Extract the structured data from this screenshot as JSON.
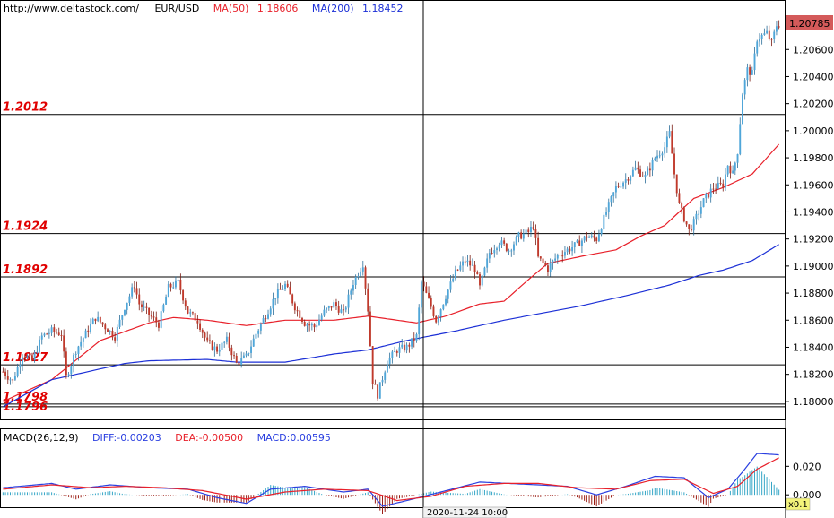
{
  "header": {
    "url": "http://www.deltastock.com/",
    "symbol": "EUR/USD",
    "ma50_label": "MA(50)",
    "ma50_value": "1.18606",
    "ma200_label": "MA(200)",
    "ma200_value": "1.18452"
  },
  "macd_header": {
    "title": "MACD(26,12,9)",
    "diff": "DIFF:-0.00203",
    "dea": "DEA:-0.00500",
    "macd": "MACD:0.00595"
  },
  "crosshair": {
    "time_label": "2020-11-24 10:00"
  },
  "zoom_label": "x0.1",
  "colors": {
    "up": "#4fa6d9",
    "down": "#c0392b",
    "ma50": "#e8202a",
    "ma200": "#1b2fd6",
    "diff": "#2a3fe0",
    "dea": "#e8202a",
    "level_text": "#e00000",
    "price_tag": "#d45a5a",
    "zoom_bg": "#f3f37a"
  },
  "chart_data": [
    {
      "type": "candlestick",
      "symbol": "EUR/USD",
      "y_ticks": [
        "1.20800",
        "1.20600",
        "1.20400",
        "1.20200",
        "1.20000",
        "1.19800",
        "1.19600",
        "1.19400",
        "1.19200",
        "1.19000",
        "1.18800",
        "1.18600",
        "1.18400",
        "1.18200",
        "1.18000"
      ],
      "ylim": [
        1.1788,
        1.2086
      ],
      "current_price": "1.20785",
      "levels": [
        {
          "label": "1.2012",
          "value": 1.2012
        },
        {
          "label": "1.1924",
          "value": 1.1924
        },
        {
          "label": "1.1892",
          "value": 1.1892
        },
        {
          "label": "1.1827",
          "value": 1.1827
        },
        {
          "label": "1.1798",
          "value": 1.1798
        },
        {
          "label": "1.1796",
          "value": 1.1796
        }
      ],
      "close_path": [
        [
          0,
          1.1822
        ],
        [
          4,
          1.1815
        ],
        [
          8,
          1.1835
        ],
        [
          12,
          1.183
        ],
        [
          16,
          1.1848
        ],
        [
          20,
          1.1852
        ],
        [
          24,
          1.185
        ],
        [
          26,
          1.1818
        ],
        [
          30,
          1.1838
        ],
        [
          34,
          1.185
        ],
        [
          38,
          1.1862
        ],
        [
          42,
          1.1855
        ],
        [
          46,
          1.1848
        ],
        [
          50,
          1.187
        ],
        [
          54,
          1.1886
        ],
        [
          56,
          1.1872
        ],
        [
          60,
          1.1864
        ],
        [
          64,
          1.1857
        ],
        [
          68,
          1.1884
        ],
        [
          72,
          1.1888
        ],
        [
          76,
          1.1866
        ],
        [
          80,
          1.186
        ],
        [
          84,
          1.1843
        ],
        [
          88,
          1.1838
        ],
        [
          92,
          1.1845
        ],
        [
          96,
          1.1828
        ],
        [
          100,
          1.1833
        ],
        [
          104,
          1.185
        ],
        [
          108,
          1.1864
        ],
        [
          112,
          1.1878
        ],
        [
          116,
          1.1886
        ],
        [
          120,
          1.187
        ],
        [
          124,
          1.1858
        ],
        [
          128,
          1.1855
        ],
        [
          132,
          1.1866
        ],
        [
          136,
          1.1872
        ],
        [
          140,
          1.1865
        ],
        [
          144,
          1.1888
        ],
        [
          148,
          1.1902
        ],
        [
          150,
          1.1868
        ],
        [
          152,
          1.1815
        ],
        [
          154,
          1.1805
        ],
        [
          158,
          1.183
        ],
        [
          162,
          1.1838
        ],
        [
          166,
          1.184
        ],
        [
          170,
          1.1848
        ],
        [
          172,
          1.1888
        ],
        [
          176,
          1.187
        ],
        [
          178,
          1.186
        ],
        [
          182,
          1.1878
        ],
        [
          186,
          1.1895
        ],
        [
          190,
          1.1904
        ],
        [
          194,
          1.1898
        ],
        [
          196,
          1.1884
        ],
        [
          200,
          1.191
        ],
        [
          204,
          1.1918
        ],
        [
          208,
          1.1912
        ],
        [
          212,
          1.1922
        ],
        [
          216,
          1.1925
        ],
        [
          218,
          1.193
        ],
        [
          220,
          1.1906
        ],
        [
          224,
          1.1898
        ],
        [
          228,
          1.1908
        ],
        [
          232,
          1.1912
        ],
        [
          236,
          1.1916
        ],
        [
          240,
          1.1922
        ],
        [
          244,
          1.192
        ],
        [
          248,
          1.194
        ],
        [
          252,
          1.1958
        ],
        [
          256,
          1.1964
        ],
        [
          260,
          1.1972
        ],
        [
          264,
          1.1966
        ],
        [
          268,
          1.198
        ],
        [
          272,
          1.1988
        ],
        [
          274,
          1.1998
        ],
        [
          276,
          1.1968
        ],
        [
          278,
          1.1945
        ],
        [
          282,
          1.1926
        ],
        [
          284,
          1.1932
        ],
        [
          288,
          1.1948
        ],
        [
          292,
          1.1958
        ],
        [
          296,
          1.196
        ],
        [
          298,
          1.1975
        ],
        [
          300,
          1.1968
        ],
        [
          302,
          1.1985
        ],
        [
          304,
          1.2028
        ],
        [
          306,
          1.2045
        ],
        [
          308,
          1.2042
        ],
        [
          310,
          1.2068
        ],
        [
          314,
          1.2072
        ],
        [
          316,
          1.2065
        ],
        [
          318,
          1.2078
        ],
        [
          319,
          1.20785
        ]
      ],
      "series": [
        {
          "name": "MA(50)",
          "points": [
            [
              0,
              1.18
            ],
            [
              20,
              1.1816
            ],
            [
              40,
              1.1845
            ],
            [
              60,
              1.1858
            ],
            [
              70,
              1.1862
            ],
            [
              84,
              1.186
            ],
            [
              100,
              1.1856
            ],
            [
              116,
              1.186
            ],
            [
              136,
              1.186
            ],
            [
              150,
              1.1863
            ],
            [
              170,
              1.1858
            ],
            [
              182,
              1.1863
            ],
            [
              196,
              1.1872
            ],
            [
              206,
              1.1874
            ],
            [
              216,
              1.189
            ],
            [
              224,
              1.1902
            ],
            [
              240,
              1.1908
            ],
            [
              252,
              1.1912
            ],
            [
              262,
              1.1922
            ],
            [
              272,
              1.193
            ],
            [
              284,
              1.195
            ],
            [
              296,
              1.1958
            ],
            [
              308,
              1.1968
            ],
            [
              314,
              1.198
            ],
            [
              319,
              1.199
            ]
          ]
        },
        {
          "name": "MA(200)",
          "points": [
            [
              0,
              1.1796
            ],
            [
              20,
              1.1816
            ],
            [
              50,
              1.1828
            ],
            [
              60,
              1.183
            ],
            [
              84,
              1.1831
            ],
            [
              96,
              1.1829
            ],
            [
              116,
              1.1829
            ],
            [
              136,
              1.1835
            ],
            [
              150,
              1.1838
            ],
            [
              166,
              1.1845
            ],
            [
              186,
              1.1852
            ],
            [
              206,
              1.186
            ],
            [
              236,
              1.187
            ],
            [
              256,
              1.1878
            ],
            [
              274,
              1.1886
            ],
            [
              286,
              1.1893
            ],
            [
              296,
              1.1897
            ],
            [
              308,
              1.1904
            ],
            [
              319,
              1.1916
            ]
          ]
        }
      ]
    },
    {
      "type": "macd",
      "title": "MACD(26,12,9)",
      "y_ticks": [
        "0.020",
        "0.000"
      ],
      "ylim": [
        -0.0074,
        0.034
      ],
      "diff": [
        [
          0,
          0.005
        ],
        [
          20,
          0.008
        ],
        [
          30,
          0.004
        ],
        [
          44,
          0.007
        ],
        [
          60,
          0.005
        ],
        [
          76,
          0.004
        ],
        [
          88,
          -0.002
        ],
        [
          100,
          -0.006
        ],
        [
          110,
          0.004
        ],
        [
          124,
          0.006
        ],
        [
          140,
          0.002
        ],
        [
          150,
          0.004
        ],
        [
          156,
          -0.008
        ],
        [
          166,
          -0.004
        ],
        [
          180,
          0.002
        ],
        [
          196,
          0.009
        ],
        [
          208,
          0.008
        ],
        [
          220,
          0.007
        ],
        [
          232,
          0.006
        ],
        [
          244,
          0.0
        ],
        [
          256,
          0.006
        ],
        [
          268,
          0.013
        ],
        [
          280,
          0.012
        ],
        [
          290,
          -0.002
        ],
        [
          298,
          0.004
        ],
        [
          304,
          0.016
        ],
        [
          310,
          0.029
        ],
        [
          319,
          0.028
        ]
      ],
      "dea": [
        [
          0,
          0.004
        ],
        [
          20,
          0.007
        ],
        [
          36,
          0.005
        ],
        [
          50,
          0.006
        ],
        [
          66,
          0.005
        ],
        [
          82,
          0.003
        ],
        [
          100,
          -0.003
        ],
        [
          116,
          0.002
        ],
        [
          132,
          0.004
        ],
        [
          150,
          0.003
        ],
        [
          162,
          -0.004
        ],
        [
          176,
          -0.001
        ],
        [
          190,
          0.006
        ],
        [
          206,
          0.008
        ],
        [
          220,
          0.008
        ],
        [
          236,
          0.005
        ],
        [
          252,
          0.004
        ],
        [
          266,
          0.01
        ],
        [
          280,
          0.011
        ],
        [
          292,
          0.001
        ],
        [
          302,
          0.006
        ],
        [
          310,
          0.018
        ],
        [
          319,
          0.026
        ]
      ],
      "histogram_note": ""
    }
  ]
}
